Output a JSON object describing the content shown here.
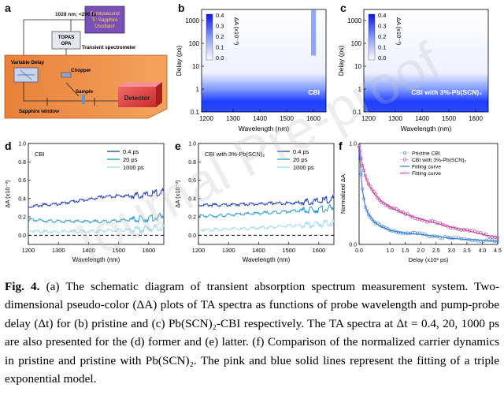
{
  "panel_a": {
    "letter": "a",
    "laser_label": "1028 nm; <290 fs",
    "laser_box_line1": "Femtosecond",
    "laser_box_line2": "Ti: Sapphire",
    "laser_box_line3": "Oscillator",
    "opa_line1": "TOPAS",
    "opa_line2": "OPA",
    "spectrometer_label": "Transient spectrometer",
    "delay_label": "Variable Delay",
    "chopper_label": "Chopper",
    "sample_label": "Sample",
    "sapphire_label": "Sapphire window",
    "detector_label": "Detector"
  },
  "panel_b": {
    "letter": "b",
    "sample_label": "CBI",
    "colorbar_label": "ΔA (x10⁻³)",
    "colorbar_ticks": [
      "0.4",
      "0.3",
      "0.2",
      "0.1",
      "0.0"
    ],
    "xlabel": "Wavelength (nm)",
    "ylabel": "Delay (ps)",
    "xticks": [
      "1200",
      "1300",
      "1400",
      "1500",
      "1600"
    ],
    "yticks": [
      "1000",
      "100",
      "10",
      "1",
      "0.1"
    ]
  },
  "panel_c": {
    "letter": "c",
    "sample_label": "CBI with 3%-Pb(SCN)₂",
    "colorbar_label": "ΔA (x10⁻³)",
    "colorbar_ticks": [
      "0.4",
      "0.3",
      "0.2",
      "0.1",
      "0.0"
    ],
    "xlabel": "Wavelength (nm)",
    "ylabel": "Delay (ps)",
    "xticks": [
      "1200",
      "1300",
      "1400",
      "1500",
      "1600"
    ],
    "yticks": [
      "1000",
      "100",
      "10",
      "1",
      "0.1"
    ]
  },
  "chart_data": [
    {
      "id": "d",
      "type": "line",
      "title": "CBI",
      "xlabel": "Wavelength (nm)",
      "ylabel": "ΔA (x10⁻³)",
      "xlim": [
        1200,
        1650
      ],
      "ylim": [
        -0.1,
        1.0
      ],
      "xticks": [
        "1200",
        "1300",
        "1400",
        "1500",
        "1600"
      ],
      "yticks": [
        "0.0",
        "0.2",
        "0.4",
        "0.6",
        "0.8",
        "1.0"
      ],
      "x": [
        1200,
        1250,
        1300,
        1350,
        1400,
        1450,
        1500,
        1550,
        1600,
        1650
      ],
      "series": [
        {
          "name": "0.4 ps",
          "color": "#1f3fbf",
          "values": [
            0.31,
            0.33,
            0.34,
            0.37,
            0.39,
            0.42,
            0.43,
            0.43,
            0.44,
            0.48
          ]
        },
        {
          "name": "20 ps",
          "color": "#2a9ad8",
          "values": [
            0.17,
            0.16,
            0.15,
            0.15,
            0.15,
            0.15,
            0.16,
            0.17,
            0.18,
            0.21
          ]
        },
        {
          "name": "1000 ps",
          "color": "#9fdcf0",
          "values": [
            0.05,
            0.04,
            0.04,
            0.04,
            0.04,
            0.05,
            0.05,
            0.06,
            0.07,
            0.09
          ]
        }
      ]
    },
    {
      "id": "e",
      "type": "line",
      "title": "CBI with 3%-Pb(SCN)₂",
      "xlabel": "Wavelength (nm)",
      "ylabel": "ΔA (x10⁻³)",
      "xlim": [
        1200,
        1650
      ],
      "ylim": [
        -0.1,
        1.0
      ],
      "xticks": [
        "1200",
        "1300",
        "1400",
        "1500",
        "1600"
      ],
      "yticks": [
        "0.0",
        "0.2",
        "0.4",
        "0.6",
        "0.8",
        "1.0"
      ],
      "x": [
        1200,
        1250,
        1300,
        1350,
        1400,
        1450,
        1500,
        1550,
        1600,
        1650
      ],
      "series": [
        {
          "name": "0.4 ps",
          "color": "#1f3fbf",
          "values": [
            0.33,
            0.33,
            0.33,
            0.34,
            0.34,
            0.35,
            0.35,
            0.36,
            0.37,
            0.4
          ]
        },
        {
          "name": "20 ps",
          "color": "#2a9ad8",
          "values": [
            0.21,
            0.21,
            0.22,
            0.23,
            0.24,
            0.25,
            0.26,
            0.27,
            0.28,
            0.3
          ]
        },
        {
          "name": "1000 ps",
          "color": "#9fdcf0",
          "values": [
            0.06,
            0.06,
            0.07,
            0.07,
            0.08,
            0.09,
            0.1,
            0.11,
            0.12,
            0.14
          ]
        }
      ]
    },
    {
      "id": "f",
      "type": "scatter",
      "title": "",
      "xlabel": "Delay (x10³ ps)",
      "ylabel": "Normalized ΔA",
      "xlim": [
        0,
        4.5
      ],
      "ylim": [
        0,
        1.0
      ],
      "xticks": [
        "0.0",
        "1.0",
        "1.5",
        "2.0",
        "2.5",
        "3.0",
        "3.5",
        "4.0",
        "4.5"
      ],
      "yticks": [
        "0.0",
        "1.0"
      ],
      "x": [
        0.0,
        0.1,
        0.2,
        0.3,
        0.5,
        0.7,
        1.0,
        1.5,
        2.0,
        2.5,
        3.0,
        3.5,
        4.0,
        4.5
      ],
      "series": [
        {
          "name": "Pristine CBI",
          "color": "#2a7fd0",
          "values": [
            0.96,
            0.55,
            0.38,
            0.3,
            0.22,
            0.18,
            0.14,
            0.11,
            0.1,
            0.08,
            0.06,
            0.05,
            0.04,
            0.03
          ]
        },
        {
          "name": "CBI with 3%-Pb(SCN)₂",
          "color": "#b2329a",
          "values": [
            0.98,
            0.8,
            0.68,
            0.6,
            0.5,
            0.43,
            0.37,
            0.3,
            0.25,
            0.21,
            0.17,
            0.14,
            0.1,
            0.07
          ]
        },
        {
          "name": "Fitting curve",
          "color": "#3a6ee0",
          "values": [
            0.96,
            0.55,
            0.38,
            0.3,
            0.22,
            0.18,
            0.14,
            0.11,
            0.1,
            0.08,
            0.06,
            0.05,
            0.04,
            0.03
          ]
        },
        {
          "name": "Fitting curve",
          "color": "#e0469a",
          "values": [
            0.98,
            0.8,
            0.68,
            0.6,
            0.5,
            0.43,
            0.37,
            0.3,
            0.25,
            0.21,
            0.17,
            0.14,
            0.1,
            0.07
          ]
        }
      ]
    }
  ],
  "caption": {
    "fig_label": "Fig. 4.",
    "text": "(a) The schematic diagram of transient absorption spectrum measurement system. Two-dimensional pseudo-color (ΔA) plots of TA spectra as functions of probe wavelength and pump-probe delay (Δt) for (b) pristine and (c) Pb(SCN)₂-CBI respectively. The TA spectra at Δt = 0.4, 20, 1000 ps are also presented for the (d) former and (e) latter. (f) Comparison of the normalized carrier dynamics in pristine and pristine with Pb(SCN)₂. The pink and blue solid lines represent the fitting of a triple exponential model."
  },
  "watermark": "Journal Pre-proof"
}
